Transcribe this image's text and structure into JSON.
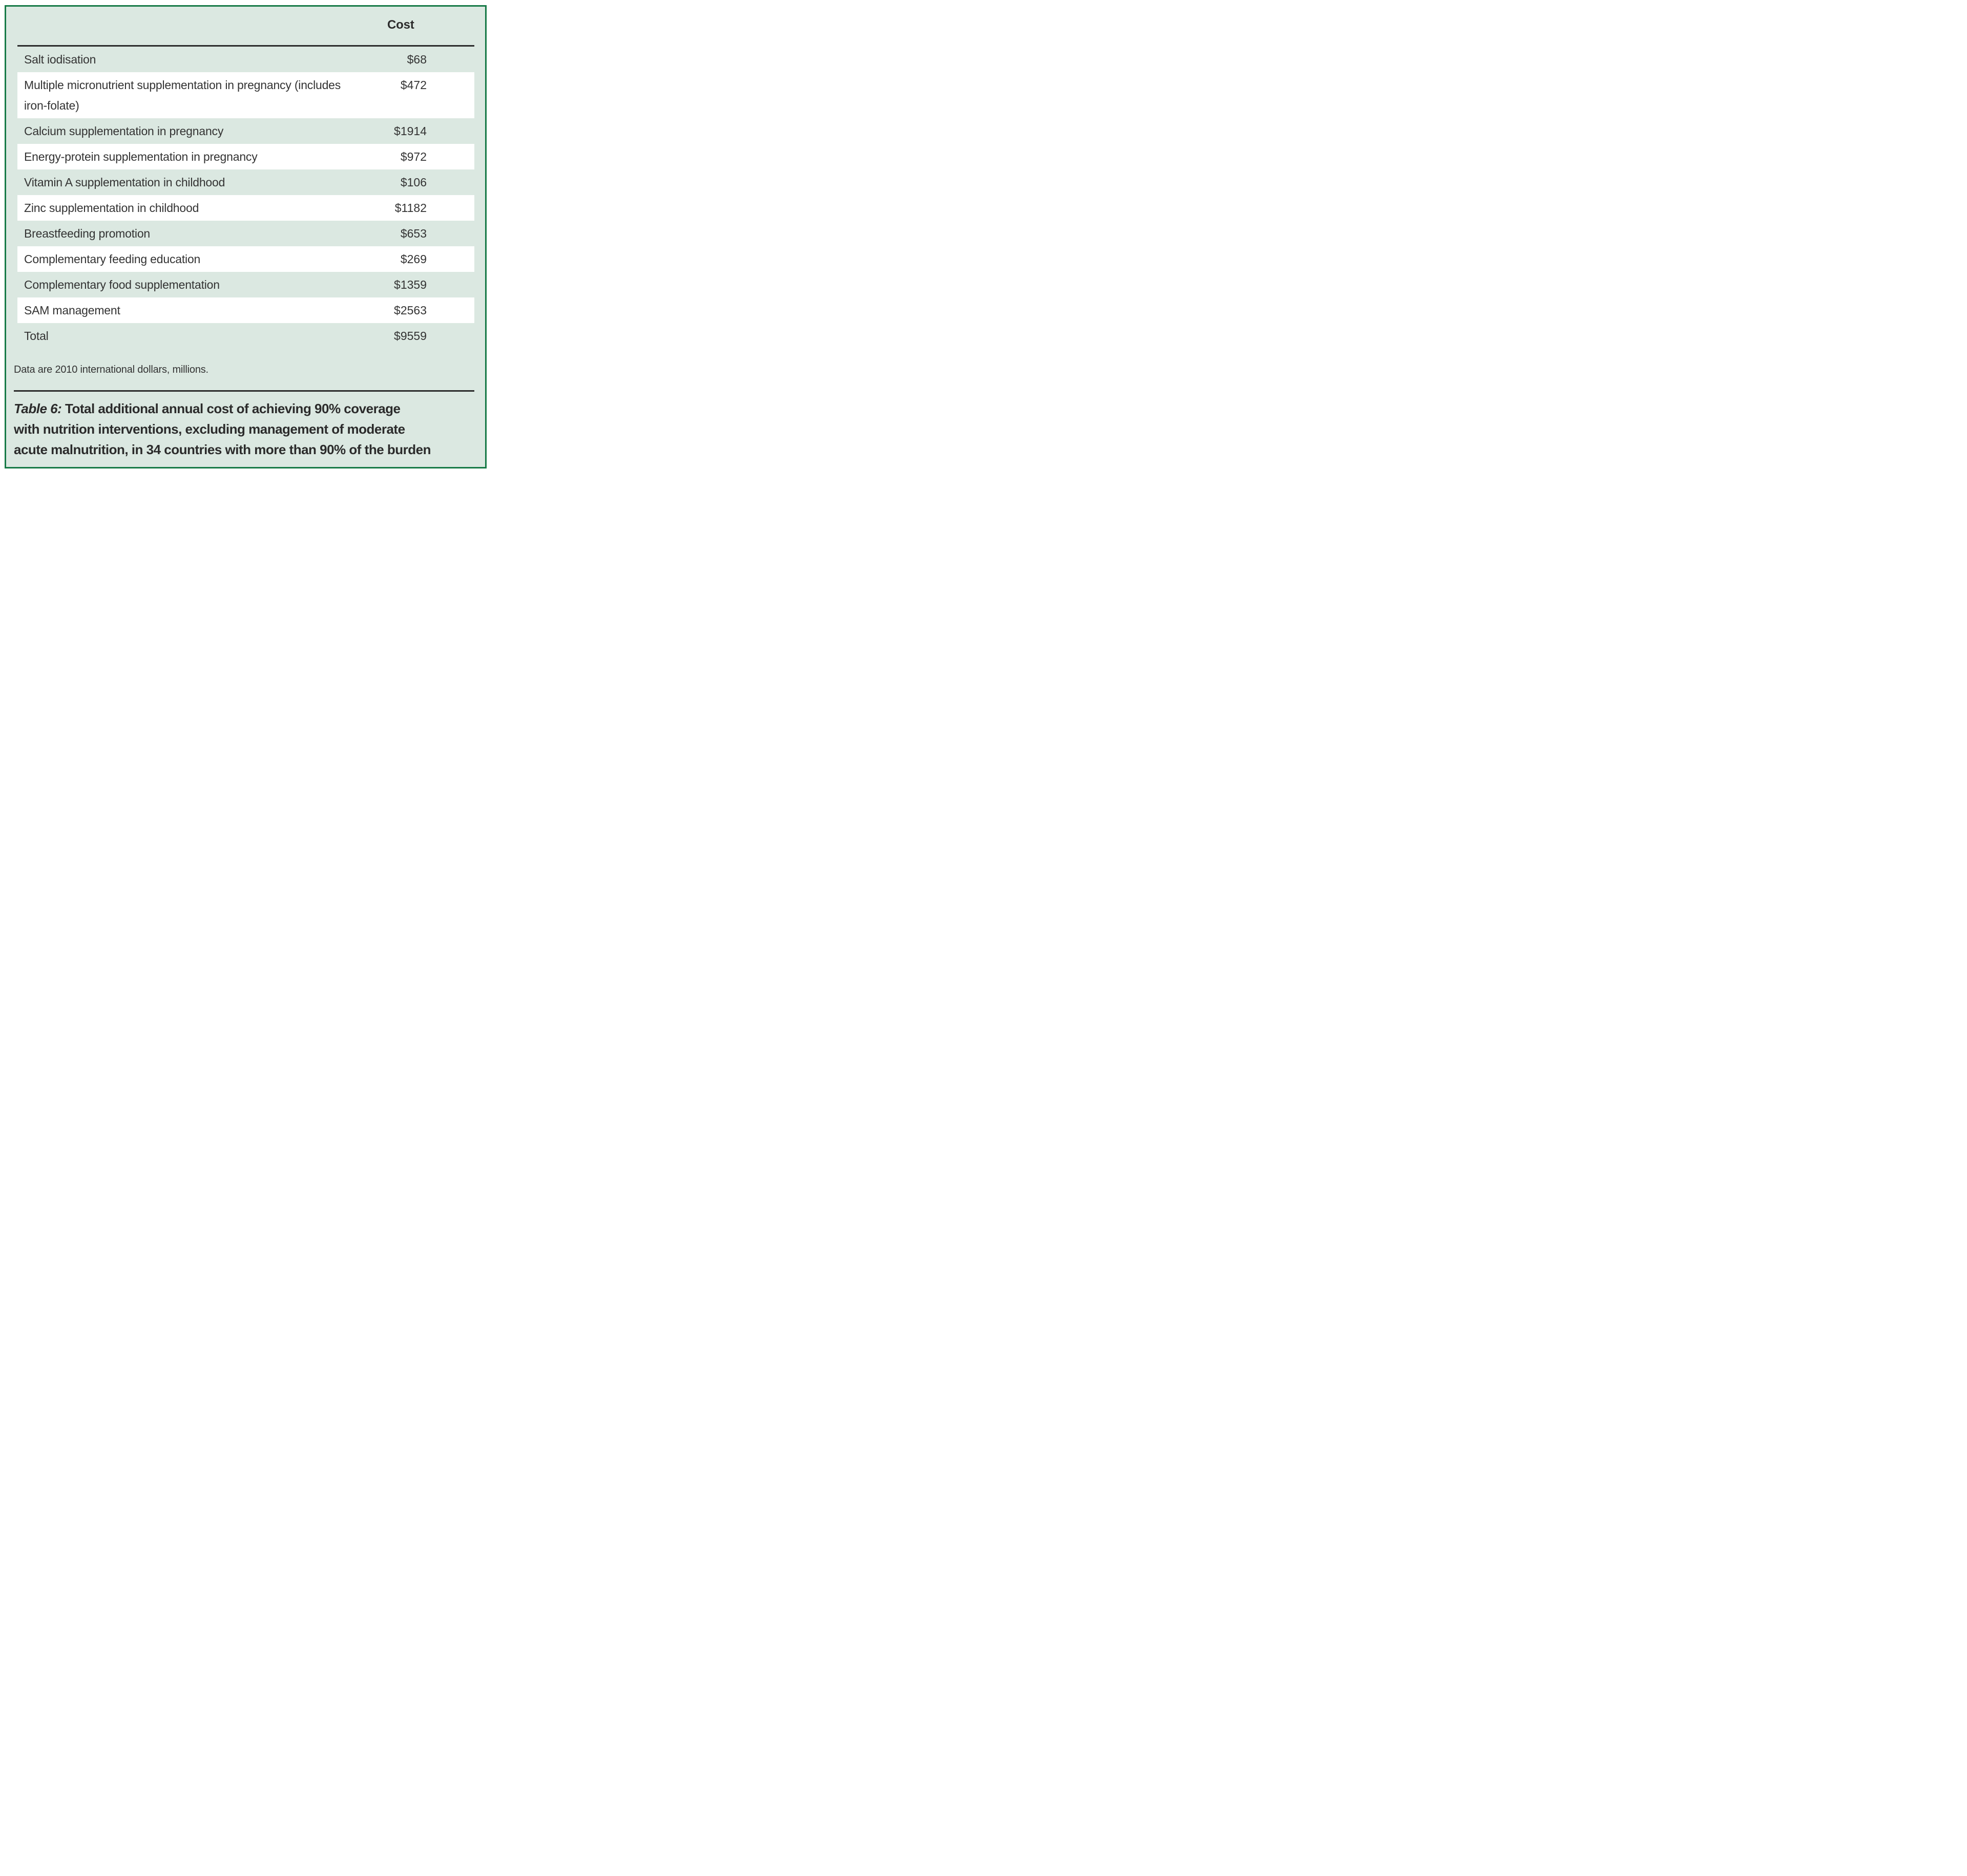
{
  "panel": {
    "bg_color": "#dbe8e1",
    "border_color": "#177a47",
    "row_alt_color": "#ffffff",
    "rule_color": "#2b2b2b",
    "text_color": "#333333"
  },
  "table": {
    "header": {
      "cost": "Cost"
    },
    "rows": [
      {
        "label": "Salt iodisation",
        "cost": "$68"
      },
      {
        "label": "Multiple micronutrient supplementation in pregnancy (includes iron-folate)",
        "cost": "$472"
      },
      {
        "label": "Calcium supplementation in pregnancy",
        "cost": "$1914"
      },
      {
        "label": "Energy-protein supplementation in pregnancy",
        "cost": "$972"
      },
      {
        "label": "Vitamin A supplementation in childhood",
        "cost": "$106"
      },
      {
        "label": "Zinc supplementation in childhood",
        "cost": "$1182"
      },
      {
        "label": "Breastfeeding promotion",
        "cost": "$653"
      },
      {
        "label": "Complementary feeding education",
        "cost": "$269"
      },
      {
        "label": "Complementary food supplementation",
        "cost": "$1359"
      },
      {
        "label": "SAM management",
        "cost": "$2563"
      },
      {
        "label": "Total",
        "cost": "$9559"
      }
    ]
  },
  "footnote": "Data are 2010 international dollars, millions.",
  "caption": {
    "prefix": "Table 6:",
    "lines": [
      "Total additional annual cost of achieving 90% coverage",
      "with nutrition interventions, excluding management of moderate",
      "acute malnutrition, in 34 countries with more than 90% of the burden"
    ]
  }
}
